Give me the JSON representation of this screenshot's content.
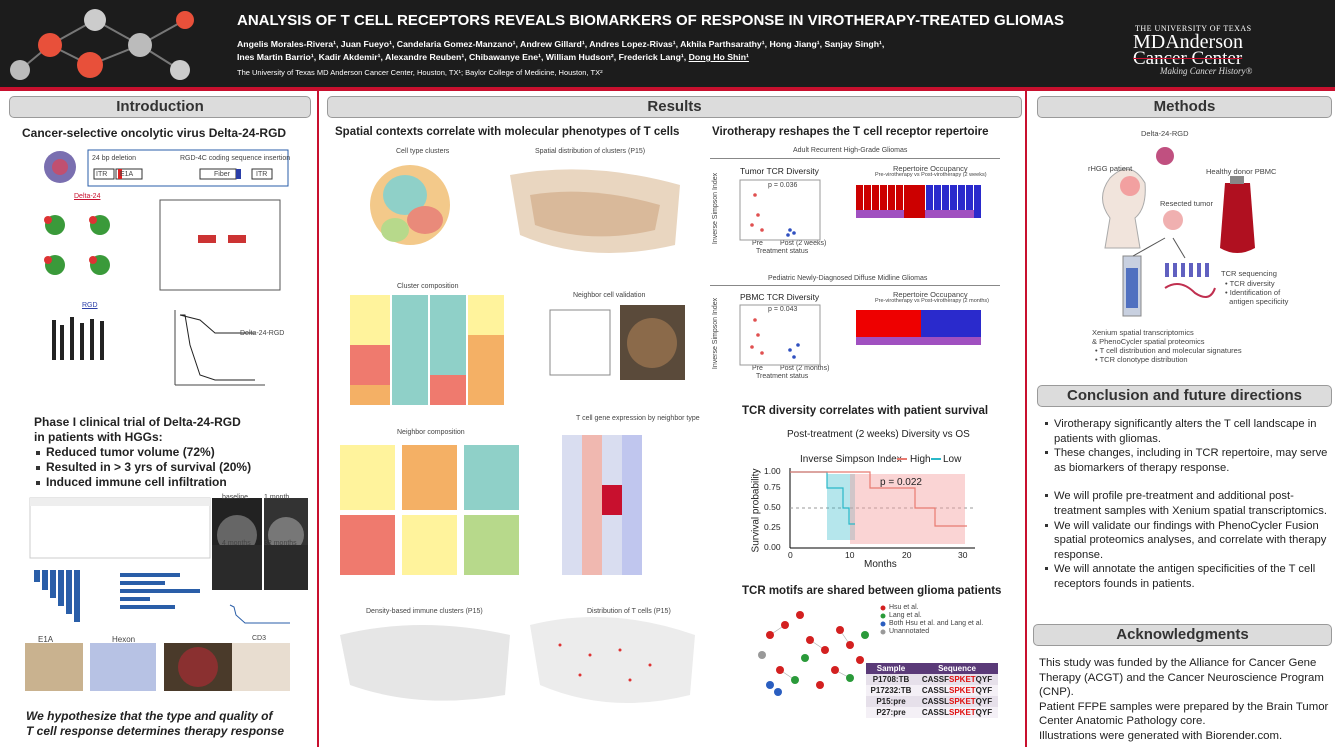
{
  "header": {
    "title": "ANALYSIS OF T CELL RECEPTORS REVEALS BIOMARKERS OF RESPONSE IN VIROTHERAPY-TREATED GLIOMAS",
    "authors": [
      "Angelis Morales-Rivera¹, Juan Fueyo¹, Candelaria Gomez-Manzano¹, Andrew Gillard¹, Andres Lopez-Rivas¹, Akhila Parthsarathy¹, Hong Jiang¹, Sanjay Singh¹,",
      "Ines Martin Barrio¹, Kadir Akdemir¹, Alexandre Reuben¹, Chibawanye Ene¹, William Hudson², Frederick Lang¹,"
    ],
    "presenter": "Dong Ho Shin¹",
    "affiliation": "The University of Texas MD Anderson Cancer Center, Houston, TX¹; Baylor College of Medicine, Houston, TX²",
    "logo": {
      "line1": "THE UNIVERSITY OF TEXAS",
      "line2": "MDAnderson",
      "line3": "Cancer Center",
      "tagline": "Making Cancer History®"
    }
  },
  "introduction": {
    "heading": "Introduction",
    "subtitle": "Cancer-selective oncolytic virus Delta-24-RGD",
    "figure_labels": [
      "24 bp deletion",
      "RGD-4C coding sequence insertion",
      "ITR",
      "E1A",
      "Fiber",
      "ITR",
      "Delta-24",
      "RGD",
      "Delta-24-RGD"
    ],
    "phase_title": [
      "Phase I clinical trial of Delta-24-RGD",
      "in patients with HGGs:"
    ],
    "bullets": [
      "Reduced tumor volume (72%)",
      "Resulted in > 3 yrs of survival (20%)",
      "Induced immune cell infiltration"
    ],
    "figure2_labels": [
      "E1A",
      "Hexon",
      "baseline",
      "1 month",
      "4 months",
      "32 months",
      "CD3"
    ],
    "hypothesis": [
      "We hypothesize that the type and quality of",
      "T cell response determines therapy response"
    ]
  },
  "results": {
    "heading": "Results",
    "spatial": {
      "title": "Spatial contexts correlate with molecular phenotypes of T cells",
      "labels": [
        "Cell type clusters",
        "Spatial distribution of clusters (P15)",
        "Cluster composition",
        "Neighbor cell validation",
        "Neighbor composition",
        "T cell gene expression by neighbor type",
        "Density-based immune clusters (P15)",
        "Distribution of T cells (P15)"
      ]
    },
    "repertoire": {
      "title": "Virotherapy reshapes the T cell receptor repertoire",
      "adult": {
        "title": "Adult Recurrent High-Grade Gliomas",
        "diversity_title": "Tumor TCR Diversity",
        "p": "p = 0.036",
        "groups": [
          "Pre",
          "Post (2 weeks)"
        ],
        "xlabel": "Treatment status",
        "ylabel": "Inverse Simpson Index",
        "occupancy_title": "Repertoire Occupancy",
        "occupancy_subtitle": "Pre-virotherapy vs Post-virotherapy (2 weeks)"
      },
      "pediatric": {
        "title": "Pediatric Newly-Diagnosed Diffuse Midline Gliomas",
        "diversity_title": "PBMC TCR Diversity",
        "p": "p = 0.043",
        "groups": [
          "Pre",
          "Post (2 months)"
        ],
        "xlabel": "Treatment status",
        "ylabel": "Inverse Simpson Index",
        "occupancy_title": "Repertoire Occupancy",
        "occupancy_subtitle": "Pre-virotherapy vs Post-virotherapy (2 months)"
      }
    },
    "survival": {
      "title": "TCR diversity correlates with patient survival",
      "plot_title": "Post-treatment (2 weeks) Diversity vs OS",
      "legend_title": "Inverse Simpson Index",
      "legend": [
        "High",
        "Low"
      ],
      "p": "p = 0.022",
      "xlabel": "Months",
      "ylabel": "Survival probability",
      "yticks": [
        "0.00",
        "0.25",
        "0.50",
        "0.75",
        "1.00"
      ],
      "xticks": [
        "0",
        "10",
        "20",
        "30"
      ]
    },
    "motifs": {
      "title": "TCR motifs are shared between glioma patients",
      "legend": [
        "Hsu et al.",
        "Lang et al.",
        "Both Hsu et al. and Lang et al.",
        "Unannotated"
      ],
      "table": {
        "header": [
          "Sample",
          "Sequence"
        ],
        "rows": [
          [
            "P1708:TB",
            "CASSF",
            "SPKET",
            "QYF"
          ],
          [
            "P17232:TB",
            "CASSL",
            "SPKET",
            "QYF"
          ],
          [
            "P15:pre",
            "CASSL",
            "SPKET",
            "QYF"
          ],
          [
            "P27:pre",
            "CASSL",
            "SPKET",
            "QYF"
          ]
        ]
      }
    }
  },
  "methods": {
    "heading": "Methods",
    "labels": [
      "Delta-24-RGD",
      "rHGG patient",
      "Healthy donor PBMC",
      "Resected tumor",
      "TCR sequencing",
      "• TCR diversity",
      "• Identification of",
      "  antigen specificity",
      "Xenium spatial transcriptomics",
      "& PhenoCycler spatial proteomics",
      "• T cell distribution and molecular signatures",
      "• TCR clonotype distribution"
    ]
  },
  "conclusion": {
    "heading": "Conclusion and future directions",
    "bullets": [
      "Virotherapy significantly alters the T cell landscape in patients with gliomas.",
      "These changes, including in TCR repertoire, may serve as biomarkers of therapy response.",
      "We will profile pre-treatment and additional post-treatment samples with Xenium spatial transcriptomics.",
      "We will validate our findings with PhenoCycler Fusion spatial proteomics analyses, and correlate with therapy response.",
      "We will annotate the antigen specificities of the T cell receptors founds in patients."
    ]
  },
  "acknowledgments": {
    "heading": "Acknowledgments",
    "paragraphs": [
      "This study was funded by the Alliance for Cancer Gene Therapy (ACGT) and the Cancer Neuroscience Program (CNP).",
      "Patient FFPE samples were prepared by the Brain Tumor Center Anatomic Pathology core.",
      "Illustrations were generated with Biorender.com."
    ]
  }
}
